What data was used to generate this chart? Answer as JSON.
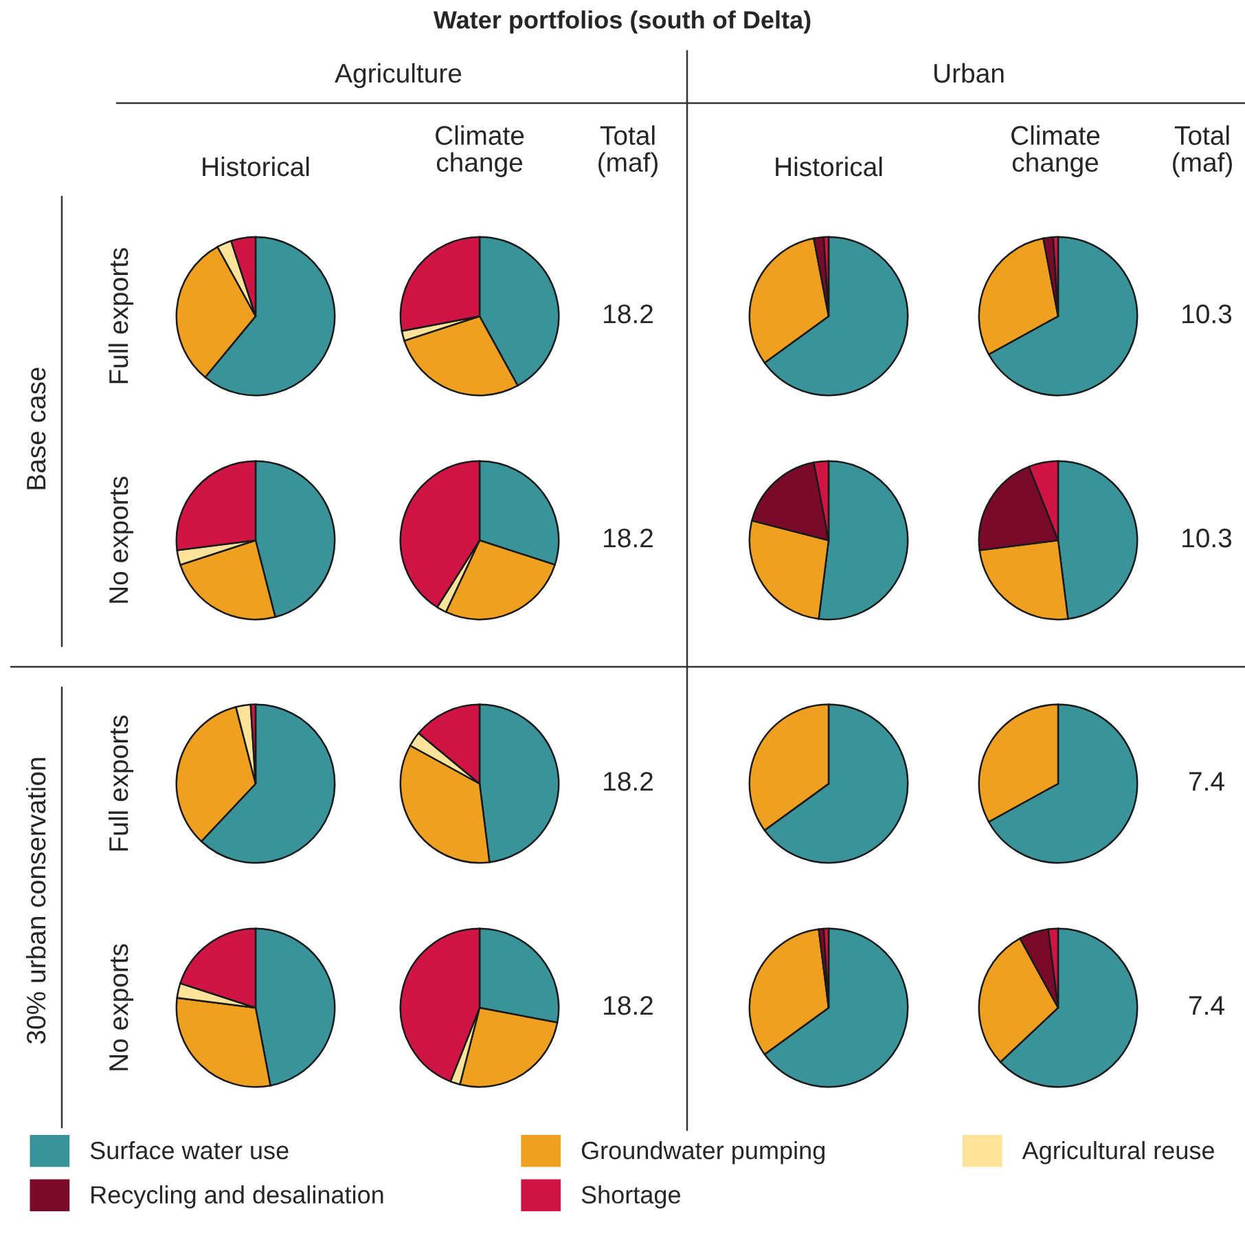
{
  "chart_data": [
    {
      "type": "pie",
      "title": "Water portfolios (south of Delta)",
      "annotations": [
        "Agriculture",
        "Urban",
        "Historical",
        "Climate\nchange",
        "Total\n(maf)",
        "Historical",
        "Climate\nchange",
        "Total\n(maf)",
        "Base case",
        "30% urban conservation",
        "Full exports",
        "No exports",
        "Full exports",
        "No exports"
      ],
      "legend": "bottom",
      "categories": [
        "Surface water use",
        "Groundwater pumping",
        "Agricultural reuse",
        "Recycling and desalination",
        "Shortage"
      ],
      "values": [
        61,
        31,
        3,
        null,
        5
      ],
      "colors": [
        "#3a9399",
        "#f0a020",
        "#fde49a",
        "#7a0a2a",
        "#d01444"
      ]
    },
    {
      "type": "pie",
      "annotations": [
        "18.2"
      ],
      "values": [
        42,
        28,
        2,
        null,
        28
      ],
      "colors": [
        "#3a9399",
        "#f0a020",
        "#fde49a",
        "#7a0a2a",
        "#d01444"
      ]
    },
    {
      "type": "pie",
      "values": [
        65,
        32,
        null,
        2,
        1
      ],
      "colors": [
        "#3a9399",
        "#f0a020",
        "#fde49a",
        "#7a0a2a",
        "#d01444"
      ]
    },
    {
      "type": "pie",
      "annotations": [
        "10.3"
      ],
      "values": [
        67,
        30,
        null,
        2,
        1
      ],
      "colors": [
        "#3a9399",
        "#f0a020",
        "#fde49a",
        "#7a0a2a",
        "#d01444"
      ]
    },
    {
      "type": "pie",
      "values": [
        46,
        24,
        3,
        null,
        27
      ],
      "colors": [
        "#3a9399",
        "#f0a020",
        "#fde49a",
        "#7a0a2a",
        "#d01444"
      ]
    },
    {
      "type": "pie",
      "annotations": [
        "18.2"
      ],
      "values": [
        30,
        27,
        2,
        null,
        41
      ],
      "colors": [
        "#3a9399",
        "#f0a020",
        "#fde49a",
        "#7a0a2a",
        "#d01444"
      ]
    },
    {
      "type": "pie",
      "values": [
        52,
        27,
        null,
        18,
        3
      ],
      "colors": [
        "#3a9399",
        "#f0a020",
        "#fde49a",
        "#7a0a2a",
        "#d01444"
      ]
    },
    {
      "type": "pie",
      "annotations": [
        "10.3"
      ],
      "values": [
        48,
        25,
        null,
        21,
        6
      ],
      "colors": [
        "#3a9399",
        "#f0a020",
        "#fde49a",
        "#7a0a2a",
        "#d01444"
      ]
    },
    {
      "type": "pie",
      "values": [
        62,
        34,
        3,
        null,
        1
      ],
      "colors": [
        "#3a9399",
        "#f0a020",
        "#fde49a",
        "#7a0a2a",
        "#d01444"
      ]
    },
    {
      "type": "pie",
      "annotations": [
        "18.2"
      ],
      "values": [
        48,
        35,
        3,
        null,
        14
      ],
      "colors": [
        "#3a9399",
        "#f0a020",
        "#fde49a",
        "#7a0a2a",
        "#d01444"
      ]
    },
    {
      "type": "pie",
      "values": [
        65,
        35,
        null,
        null,
        null
      ],
      "colors": [
        "#3a9399",
        "#f0a020",
        "#fde49a",
        "#7a0a2a",
        "#d01444"
      ]
    },
    {
      "type": "pie",
      "annotations": [
        "7.4"
      ],
      "values": [
        67,
        33,
        null,
        null,
        null
      ],
      "colors": [
        "#3a9399",
        "#f0a020",
        "#fde49a",
        "#7a0a2a",
        "#d01444"
      ]
    },
    {
      "type": "pie",
      "values": [
        47,
        30,
        3,
        null,
        20
      ],
      "colors": [
        "#3a9399",
        "#f0a020",
        "#fde49a",
        "#7a0a2a",
        "#d01444"
      ]
    },
    {
      "type": "pie",
      "annotations": [
        "18.2"
      ],
      "values": [
        28,
        26,
        2,
        null,
        44
      ],
      "colors": [
        "#3a9399",
        "#f0a020",
        "#fde49a",
        "#7a0a2a",
        "#d01444"
      ]
    },
    {
      "type": "pie",
      "values": [
        65,
        33,
        null,
        1,
        1
      ],
      "colors": [
        "#3a9399",
        "#f0a020",
        "#fde49a",
        "#7a0a2a",
        "#d01444"
      ]
    },
    {
      "type": "pie",
      "annotations": [
        "7.4"
      ],
      "values": [
        63,
        29,
        null,
        6,
        2
      ],
      "colors": [
        "#3a9399",
        "#f0a020",
        "#fde49a",
        "#7a0a2a",
        "#d01444"
      ]
    }
  ]
}
